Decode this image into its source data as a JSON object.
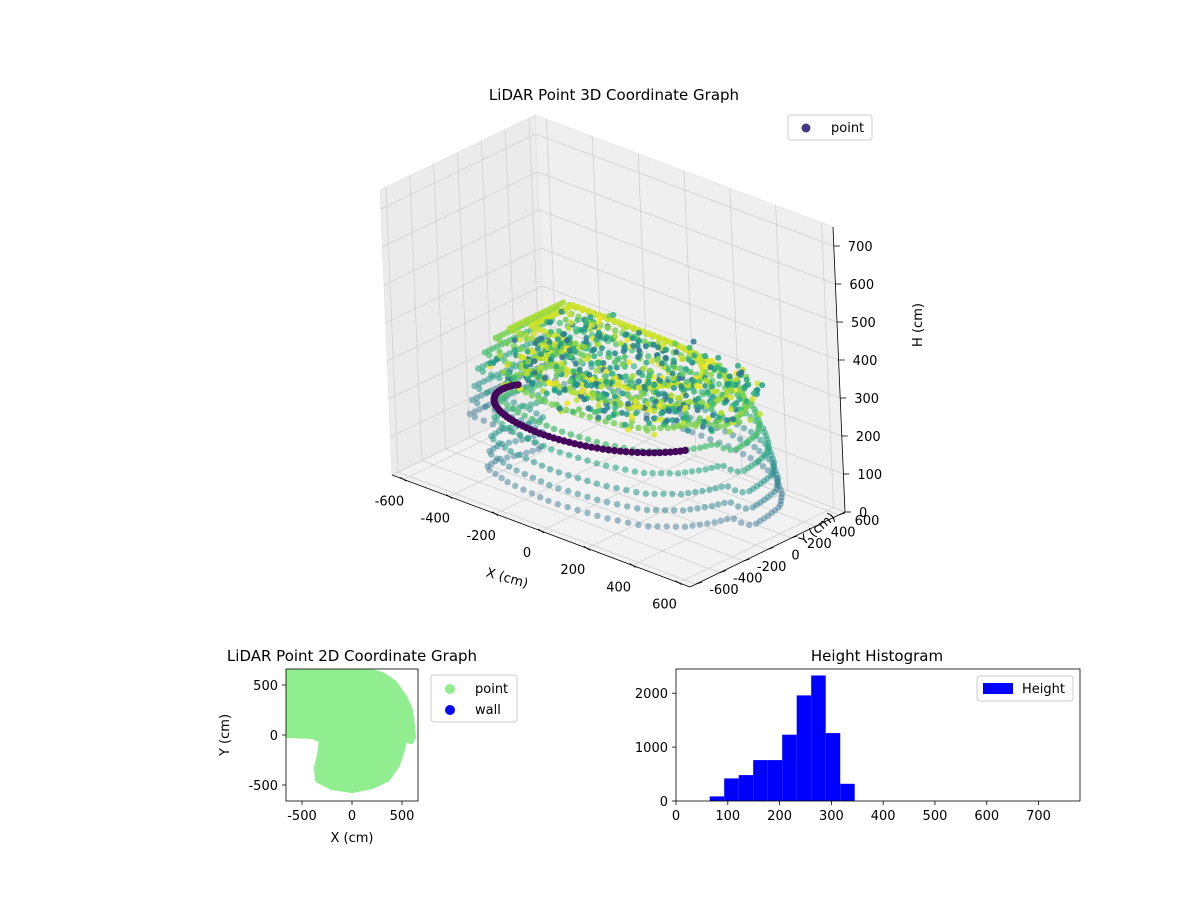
{
  "chart_data": [
    {
      "type": "scatter",
      "projection": "3d",
      "title": "LiDAR Point 3D Coordinate Graph",
      "xlabel": "X (cm)",
      "ylabel": "Y (cm)",
      "zlabel": "H (cm)",
      "xlim": [
        -650,
        650
      ],
      "ylim": [
        -650,
        650
      ],
      "zlim": [
        0,
        750
      ],
      "z_inverted": true,
      "xticks": [
        -600,
        -400,
        -200,
        0,
        200,
        400,
        600
      ],
      "yticks": [
        -600,
        -400,
        -200,
        0,
        200,
        400,
        600
      ],
      "zticks": [
        0,
        100,
        200,
        300,
        400,
        500,
        600,
        700
      ],
      "colormap": "viridis",
      "grid": true,
      "legend": {
        "placement": "top-right",
        "entries": [
          {
            "label": "point",
            "color": "#443983"
          }
        ]
      }
    },
    {
      "type": "scatter",
      "title": "LiDAR Point 2D Coordinate Graph",
      "xlabel": "X (cm)",
      "ylabel": "Y (cm)",
      "xlim": [
        -660,
        660
      ],
      "ylim": [
        -660,
        660
      ],
      "xticks": [
        -500,
        0,
        500
      ],
      "yticks": [
        -500,
        0,
        500
      ],
      "grid": false,
      "legend": {
        "placement": "outside-right",
        "entries": [
          {
            "label": "point",
            "color": "#90ee90"
          },
          {
            "label": "wall",
            "color": "#0000ff"
          }
        ]
      },
      "outline": [
        [
          -650,
          650
        ],
        [
          -150,
          650
        ],
        [
          0,
          650
        ],
        [
          150,
          645
        ],
        [
          300,
          600
        ],
        [
          420,
          520
        ],
        [
          520,
          380
        ],
        [
          580,
          250
        ],
        [
          600,
          100
        ],
        [
          610,
          -20
        ],
        [
          590,
          -60
        ],
        [
          520,
          -40
        ],
        [
          500,
          -150
        ],
        [
          450,
          -300
        ],
        [
          350,
          -440
        ],
        [
          200,
          -510
        ],
        [
          0,
          -550
        ],
        [
          -200,
          -520
        ],
        [
          -340,
          -450
        ],
        [
          -350,
          -330
        ],
        [
          -320,
          -200
        ],
        [
          -300,
          -50
        ],
        [
          -400,
          -10
        ],
        [
          -650,
          0
        ]
      ]
    },
    {
      "type": "histogram",
      "title": "Height Histogram",
      "xlim": [
        0,
        780
      ],
      "ylim": [
        0,
        2450
      ],
      "xticks": [
        0,
        100,
        200,
        300,
        400,
        500,
        600,
        700
      ],
      "yticks": [
        0,
        1000,
        2000
      ],
      "color": "#0000ff",
      "grid": false,
      "legend": {
        "placement": "top-right",
        "entries": [
          {
            "label": "Height",
            "color": "#0000ff"
          }
        ]
      },
      "bin_edges": [
        65,
        93,
        121,
        149,
        177,
        205,
        233,
        261,
        289,
        317,
        345
      ],
      "counts": [
        85,
        420,
        480,
        760,
        760,
        1230,
        1960,
        2330,
        1260,
        320
      ]
    }
  ]
}
